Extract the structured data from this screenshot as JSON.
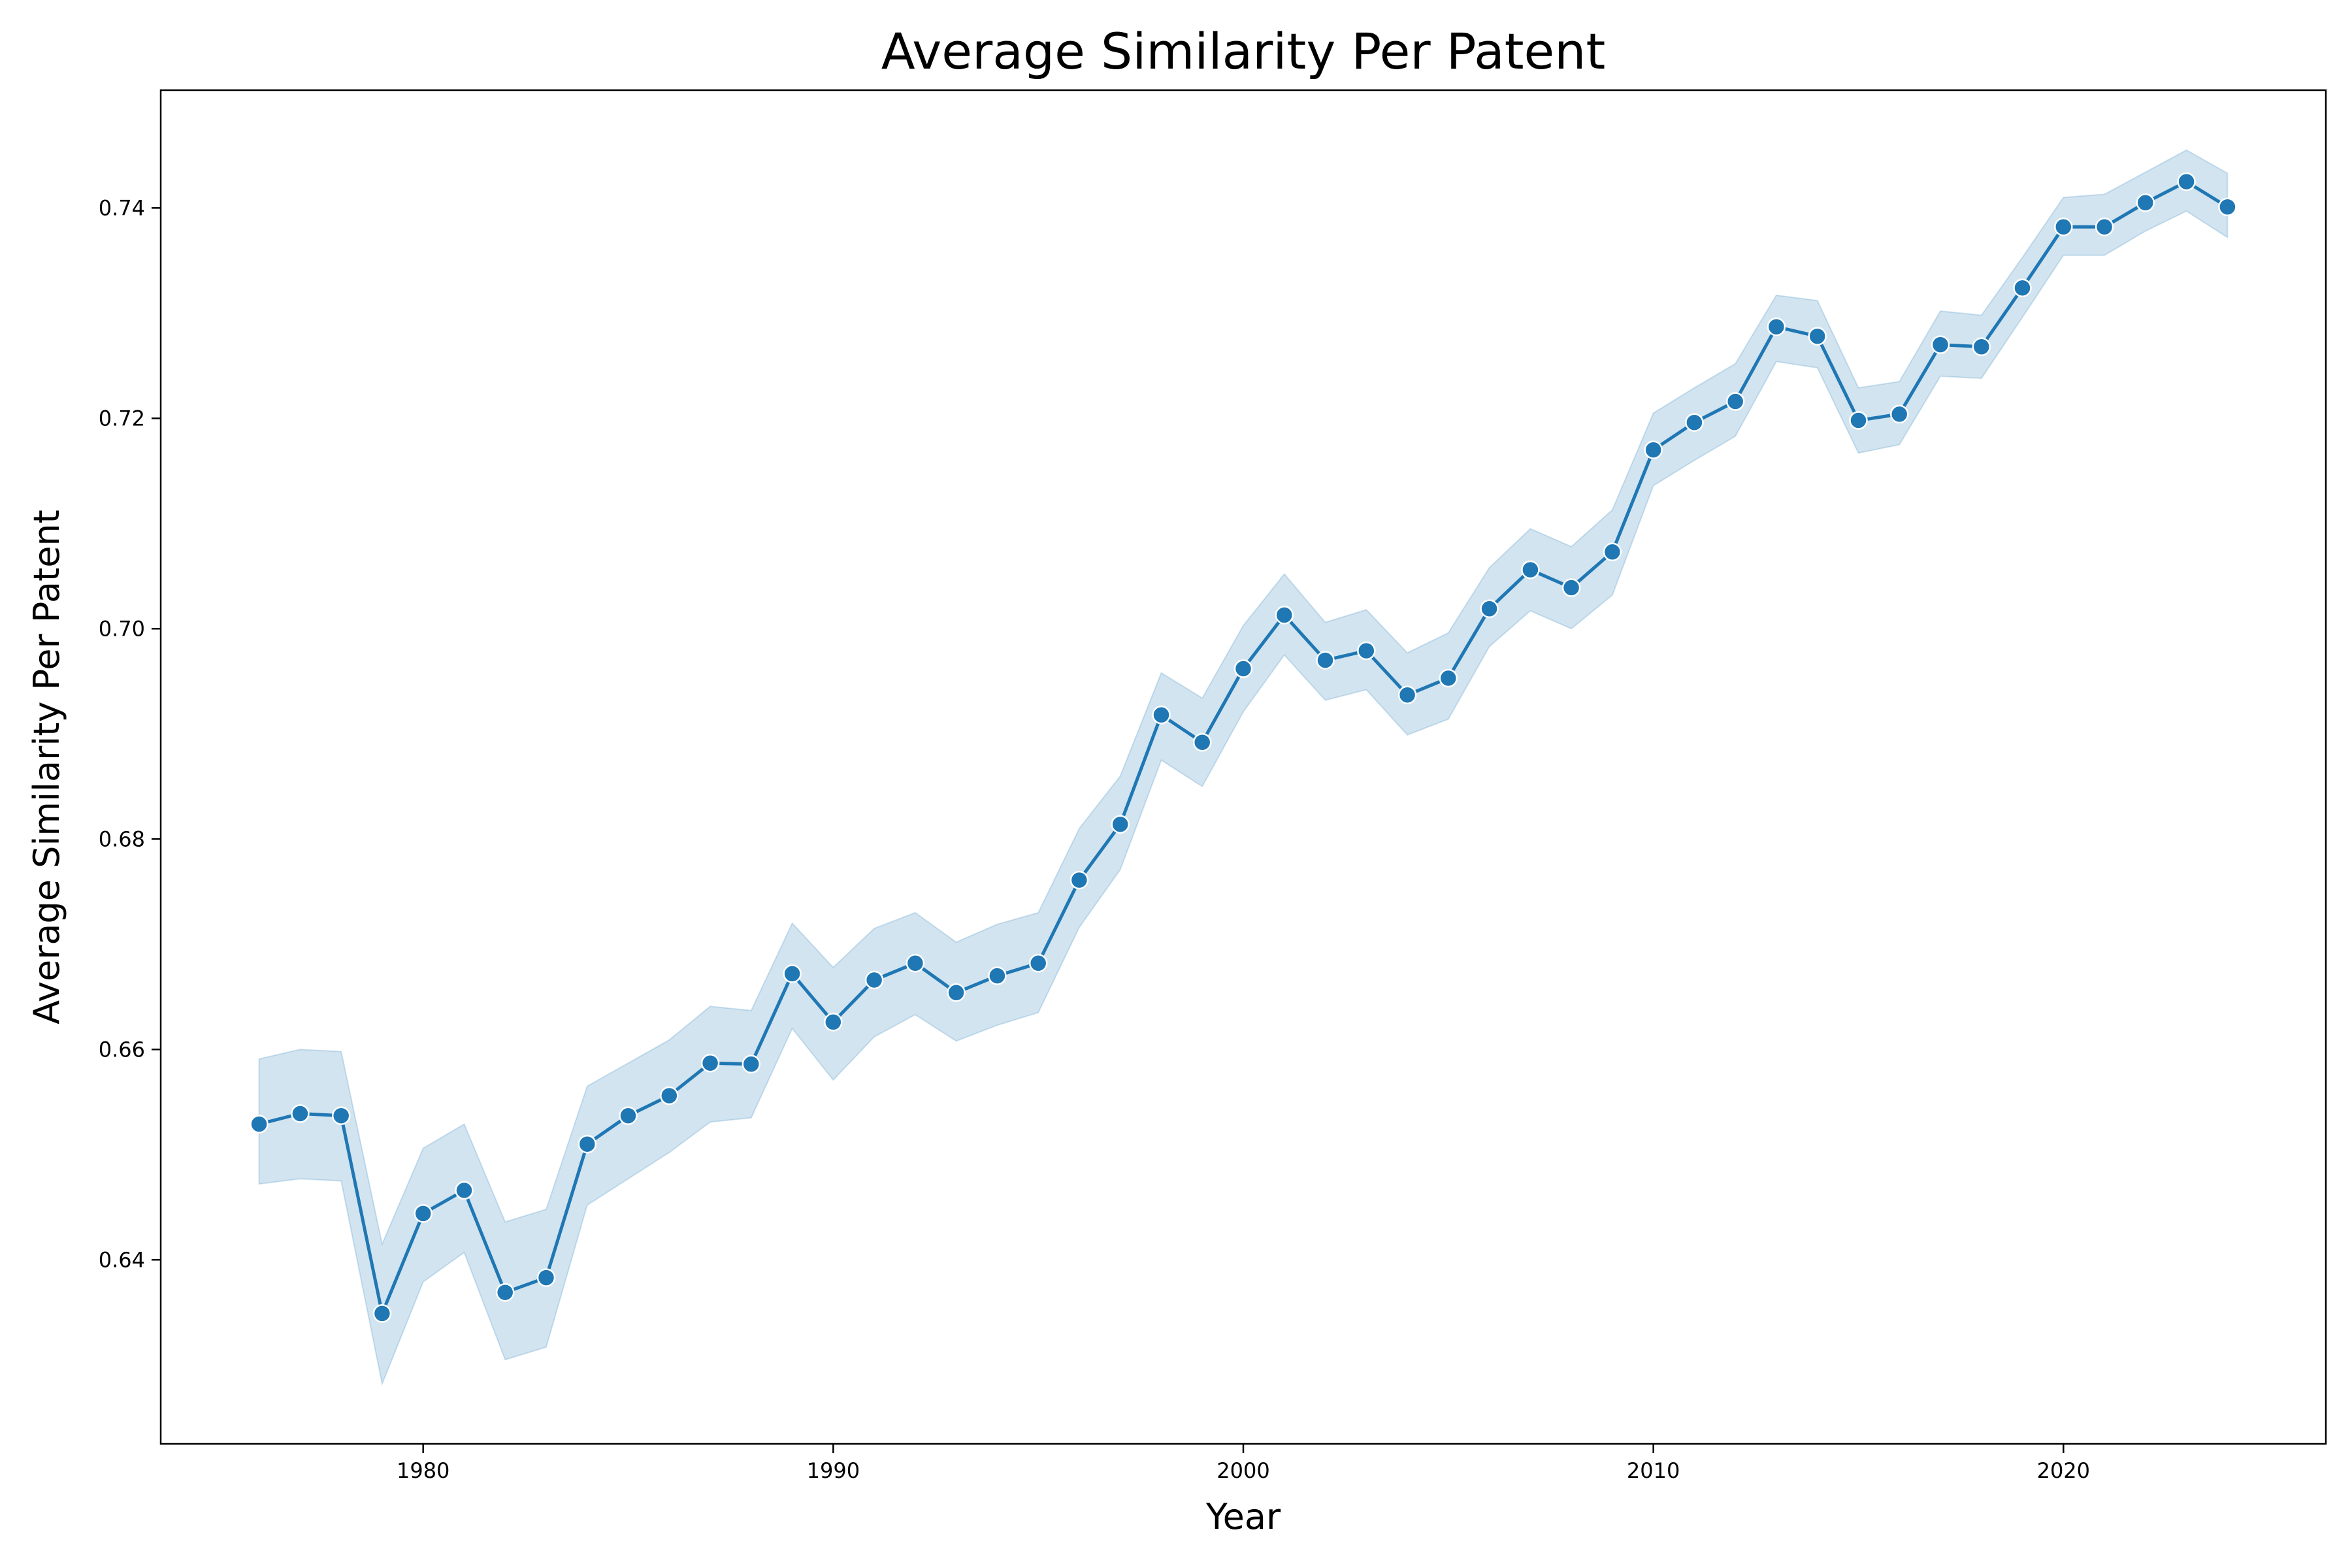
{
  "colors": {
    "line": "#1f77b4",
    "band": "#1f77b4",
    "marker_edge": "#ffffff",
    "axes": "#000000",
    "background": "#ffffff"
  },
  "chart_data": {
    "type": "line",
    "title": "Average Similarity Per Patent",
    "xlabel": "Year",
    "ylabel": "Average Similarity Per Patent",
    "xlim": [
      1973.6,
      2026.4
    ],
    "ylim": [
      0.6225,
      0.7512
    ],
    "xticks": [
      1980,
      1990,
      2000,
      2010,
      2020
    ],
    "yticks": [
      0.64,
      0.66,
      0.68,
      0.7,
      0.72,
      0.74
    ],
    "grid": false,
    "legend": "none",
    "series": [
      {
        "x": [
          1976,
          1977,
          1978,
          1979,
          1980,
          1981,
          1982,
          1983,
          1984,
          1985,
          1986,
          1987,
          1988,
          1989,
          1990,
          1991,
          1992,
          1993,
          1994,
          1995,
          1996,
          1997,
          1998,
          1999,
          2000,
          2001,
          2002,
          2003,
          2004,
          2005,
          2006,
          2007,
          2008,
          2009,
          2010,
          2011,
          2012,
          2013,
          2014,
          2015,
          2016,
          2017,
          2018,
          2019,
          2020,
          2021,
          2022,
          2023,
          2024
        ],
        "y": [
          0.6529,
          0.6539,
          0.6537,
          0.6349,
          0.6444,
          0.6466,
          0.6369,
          0.6383,
          0.651,
          0.6537,
          0.6556,
          0.6587,
          0.6586,
          0.6672,
          0.6626,
          0.6666,
          0.6682,
          0.6654,
          0.667,
          0.6682,
          0.6761,
          0.6814,
          0.6918,
          0.6892,
          0.6962,
          0.7013,
          0.697,
          0.6979,
          0.6937,
          0.6953,
          0.7019,
          0.7056,
          0.7039,
          0.7073,
          0.717,
          0.7196,
          0.7216,
          0.7287,
          0.7278,
          0.7198,
          0.7204,
          0.727,
          0.7268,
          0.7324,
          0.7382,
          0.7382,
          0.7405,
          0.7425,
          0.7401
        ],
        "ci_lower": [
          0.6472,
          0.6477,
          0.6475,
          0.6282,
          0.6379,
          0.6407,
          0.6305,
          0.6317,
          0.6452,
          0.6477,
          0.6502,
          0.6531,
          0.6535,
          0.662,
          0.6571,
          0.6612,
          0.6633,
          0.6608,
          0.6623,
          0.6635,
          0.6716,
          0.6771,
          0.6875,
          0.685,
          0.6921,
          0.6975,
          0.6932,
          0.6942,
          0.6899,
          0.6914,
          0.6983,
          0.7017,
          0.7,
          0.7032,
          0.7136,
          0.716,
          0.7183,
          0.7254,
          0.7248,
          0.7167,
          0.7175,
          0.724,
          0.7238,
          0.7296,
          0.7355,
          0.7355,
          0.7378,
          0.7397,
          0.7372
        ],
        "ci_upper": [
          0.6591,
          0.66,
          0.6598,
          0.6415,
          0.6506,
          0.6529,
          0.6436,
          0.6448,
          0.6565,
          0.6587,
          0.6609,
          0.6641,
          0.6637,
          0.672,
          0.6678,
          0.6715,
          0.673,
          0.6702,
          0.6719,
          0.673,
          0.681,
          0.686,
          0.6958,
          0.6934,
          0.7003,
          0.7052,
          0.7006,
          0.7018,
          0.6977,
          0.6996,
          0.7058,
          0.7095,
          0.7078,
          0.7113,
          0.7205,
          0.7229,
          0.7252,
          0.7317,
          0.7312,
          0.7229,
          0.7235,
          0.7302,
          0.7298,
          0.7353,
          0.741,
          0.7413,
          0.7434,
          0.7455,
          0.7433
        ]
      }
    ]
  }
}
